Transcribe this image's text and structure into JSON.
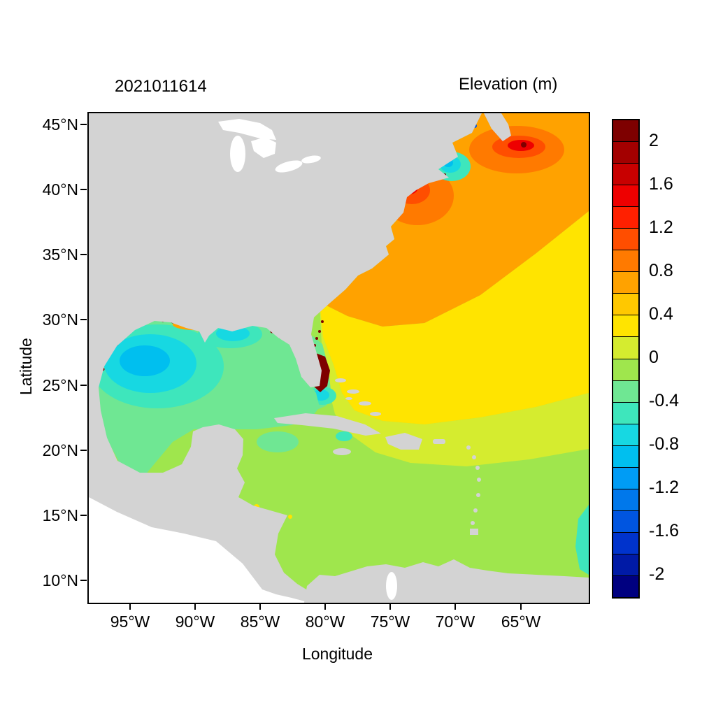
{
  "figure": {
    "timestamp": "2021011614",
    "title": "Elevation (m)"
  },
  "chart_data": {
    "type": "heatmap",
    "title": "Elevation (m)",
    "subtitle_timestamp": "2021011614",
    "xlabel": "Longitude",
    "ylabel": "Latitude",
    "x_tick_labels": [
      "95°W",
      "90°W",
      "85°W",
      "80°W",
      "75°W",
      "70°W",
      "65°W"
    ],
    "y_tick_labels": [
      "45°N",
      "40°N",
      "35°N",
      "30°N",
      "25°N",
      "20°N",
      "15°N",
      "10°N"
    ],
    "x_range": "approx 98°W to 60°W",
    "y_range": "approx 8°N to 46°N",
    "grid": false,
    "legend_position": "right-colorbar",
    "colorbar": {
      "title": "Elevation (m)",
      "range": [
        -2.2,
        2.2
      ],
      "step": 0.2,
      "tick_labels": [
        "2",
        "1.6",
        "1.2",
        "0.8",
        "0.4",
        "0",
        "-0.4",
        "-0.8",
        "-1.2",
        "-1.6",
        "-2"
      ],
      "colors": [
        "#7E0000",
        "#A30000",
        "#C80000",
        "#EE0000",
        "#FF2000",
        "#FF4E00",
        "#FF7A00",
        "#FFA200",
        "#FFC800",
        "#FFE400",
        "#D5EC2F",
        "#9FE64D",
        "#6FE793",
        "#3EE6BC",
        "#17D8E2",
        "#00BFEF",
        "#009CF5",
        "#0078EB",
        "#0055E0",
        "#0033CC",
        "#001AA6",
        "#000080"
      ]
    },
    "regions": [
      {
        "name": "northwest-atlantic-gulf-stream",
        "approx_value_m": "0.6 to 1.0",
        "color_hex": "#FFA200"
      },
      {
        "name": "off-new-jersey-warm-core",
        "approx_value_m": "1.2 to 1.6",
        "color_hex": "#FF4E00"
      },
      {
        "name": "gulf-of-maine-bay-of-fundy",
        "approx_value_m": "1.2 to 1.8",
        "color_hex": "#EE0000"
      },
      {
        "name": "cape-cod-cold-eddy",
        "approx_value_m": "-0.8 to -0.4",
        "color_hex": "#17D8E2"
      },
      {
        "name": "central-atlantic-sargasso",
        "approx_value_m": "0.4 to 0.6",
        "color_hex": "#FFE400"
      },
      {
        "name": "southeast-atlantic",
        "approx_value_m": "0.2 to 0.4",
        "color_hex": "#D5EC2F"
      },
      {
        "name": "caribbean-sea",
        "approx_value_m": "0 to 0.2",
        "color_hex": "#9FE64D"
      },
      {
        "name": "gulf-of-mexico-general",
        "approx_value_m": "-0.2 to 0",
        "color_hex": "#6FE793"
      },
      {
        "name": "western-gulf-cold-core",
        "approx_value_m": "-0.8 to -0.4",
        "color_hex": "#17D8E2"
      },
      {
        "name": "florida-east-coast-extreme",
        "approx_value_m": "> 2",
        "color_hex": "#7E0000"
      },
      {
        "name": "louisiana-coast-patches",
        "approx_value_m": "0.8 to > 2",
        "color_hex": "#FFA200"
      },
      {
        "name": "land-mask",
        "approx_value_m": "n/a",
        "color_hex": "#D3D3D3"
      },
      {
        "name": "outside-domain-pacific",
        "approx_value_m": "n/a",
        "color_hex": "#FFFFFF"
      }
    ]
  }
}
